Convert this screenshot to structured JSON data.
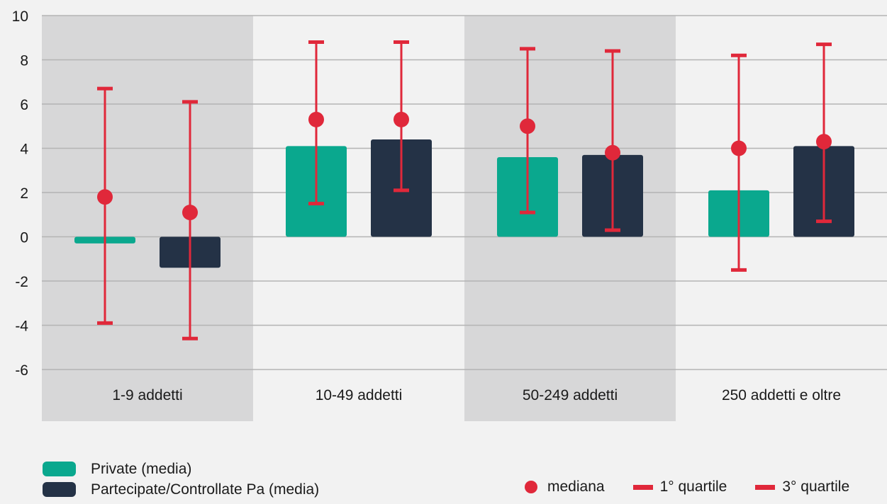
{
  "colors": {
    "private": "#0aa88e",
    "partecipate": "#243246",
    "marker": "#e0283a",
    "band": "#d7d7d8",
    "grid": "#b4b4b4",
    "background": "#f2f2f2"
  },
  "legend": {
    "series": [
      {
        "label": "Private (media)",
        "color": "#0aa88e"
      },
      {
        "label": "Partecipate/Controllate Pa (media)",
        "color": "#243246"
      }
    ],
    "markers": {
      "median": "mediana",
      "q1": "1° quartile",
      "q3": "3° quartile"
    }
  },
  "chart_data": {
    "type": "bar",
    "title": "",
    "xlabel": "",
    "ylabel": "",
    "ylim": [
      -6,
      10
    ],
    "yticks": [
      "10",
      "8",
      "6",
      "4",
      "2",
      "0",
      "-2",
      "-4",
      "-6"
    ],
    "categories": [
      "1-9 addetti",
      "10-49 addetti",
      "50-249 addetti",
      "250 addetti e oltre"
    ],
    "shaded_categories": [
      true,
      false,
      true,
      false
    ],
    "grid": true,
    "legend_position": "bottom",
    "series": [
      {
        "name": "Private (media)",
        "values": [
          -0.3,
          4.1,
          3.6,
          2.1
        ],
        "median": [
          1.8,
          5.3,
          5.0,
          4.0
        ],
        "q1": [
          -3.9,
          1.5,
          1.1,
          -1.5
        ],
        "q3": [
          6.7,
          8.8,
          8.5,
          8.2
        ]
      },
      {
        "name": "Partecipate/Controllate Pa (media)",
        "values": [
          -1.4,
          4.4,
          3.7,
          4.1
        ],
        "median": [
          1.1,
          5.3,
          3.8,
          4.3
        ],
        "q1": [
          -4.6,
          2.1,
          0.3,
          0.7
        ],
        "q3": [
          6.1,
          8.8,
          8.4,
          8.7
        ]
      }
    ]
  }
}
